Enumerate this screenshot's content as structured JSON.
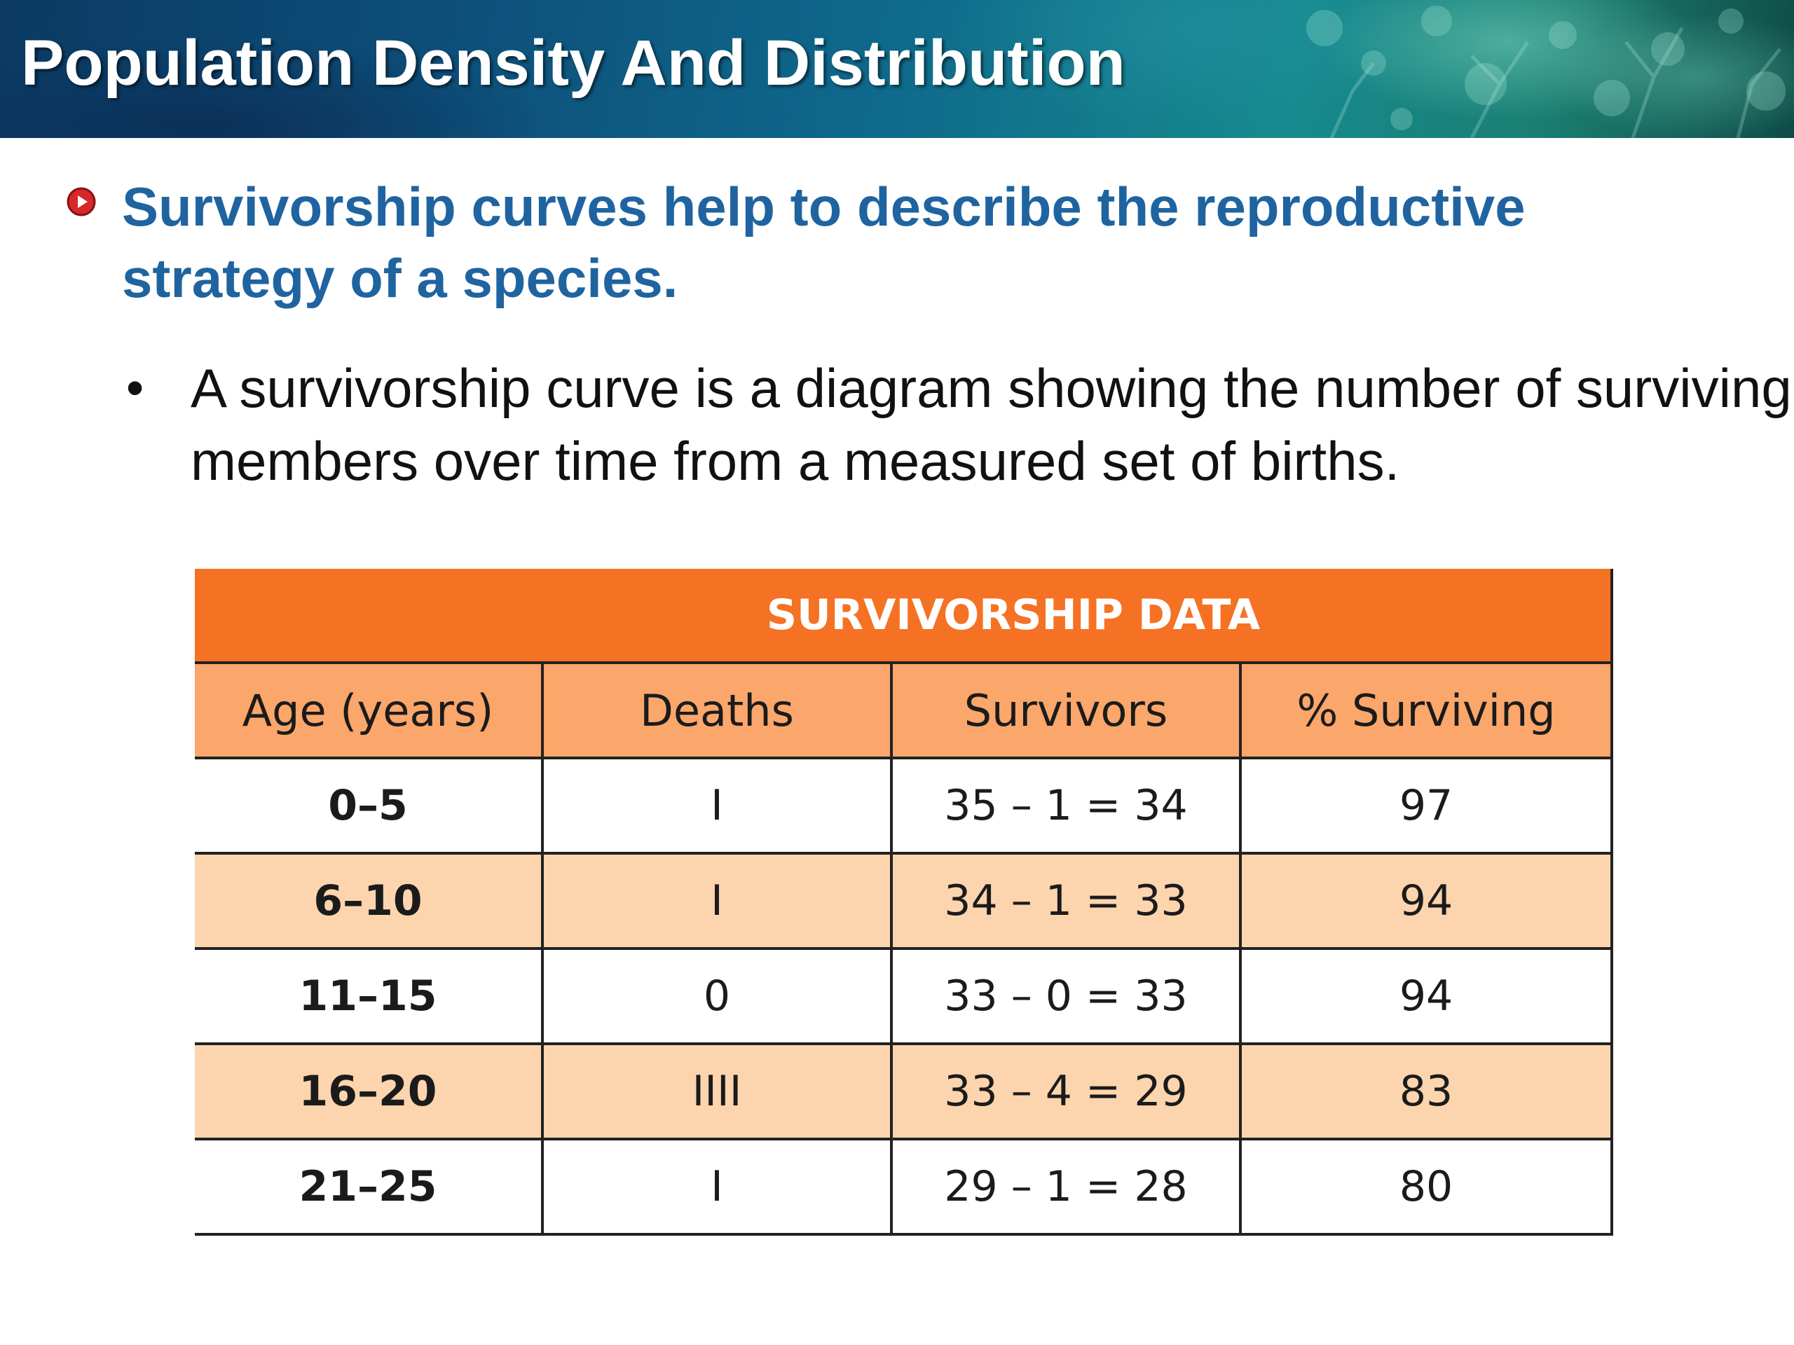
{
  "slide": {
    "title": "Population Density And Distribution",
    "main_bullet": "Survivorship curves help to describe the reproductive strategy of a species.",
    "sub_bullet": "A survivorship curve is a diagram showing the number of surviving members over time from a measured set of births.",
    "bullet_icon": "red-circle-arrow-icon",
    "accent_color": "#1f64a0"
  },
  "table": {
    "title": "SURVIVORSHIP DATA",
    "headers": [
      "Age (years)",
      "Deaths",
      "Survivors",
      "% Surviving"
    ],
    "rows": [
      [
        "0–5",
        "I",
        "35 – 1 = 34",
        "97"
      ],
      [
        "6–10",
        "I",
        "34 – 1 = 33",
        "94"
      ],
      [
        "11–15",
        "0",
        "33 – 0 = 33",
        "94"
      ],
      [
        "16–20",
        "IIII",
        "33 – 4 = 29",
        "83"
      ],
      [
        "21–25",
        "I",
        "29 – 1 = 28",
        "80"
      ]
    ],
    "colors": {
      "title_bg": "#f57224",
      "header_bg": "#fba66a",
      "alt_row_bg": "#fcd5ae"
    }
  }
}
